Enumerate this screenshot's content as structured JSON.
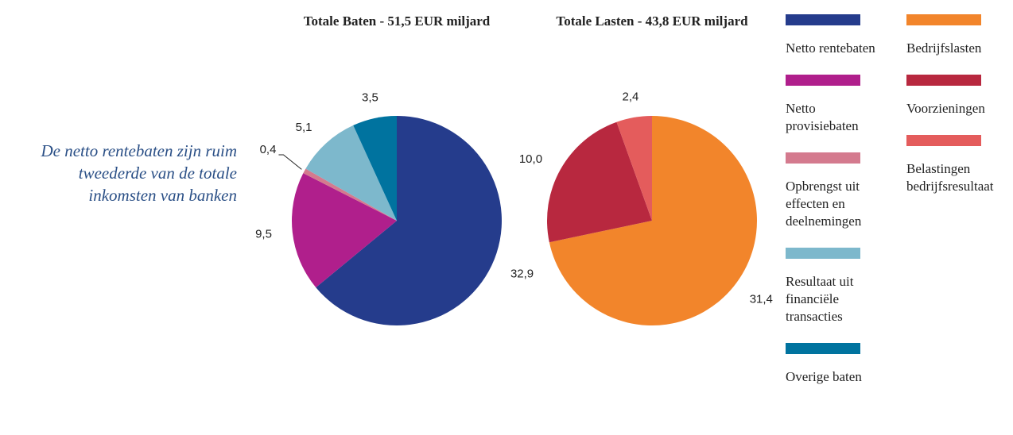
{
  "chart_data": [
    {
      "type": "pie",
      "title": "Totale Baten - 51,5 EUR miljard",
      "annotation": "De netto rentebaten zijn ruim tweederde van de totale inkomsten van banken",
      "categories": [
        "Netto rentebaten",
        "Netto provisiebaten",
        "Opbrengst uit effecten en deelnemingen",
        "Resultaat uit financiële transacties",
        "Overige baten"
      ],
      "values": [
        32.9,
        9.5,
        0.4,
        5.1,
        3.5
      ],
      "value_labels": [
        "32,9",
        "9,5",
        "0,4",
        "5,1",
        "3,5"
      ],
      "colors": [
        "#253c8c",
        "#b01f8c",
        "#d47a8e",
        "#7db8cc",
        "#00739f"
      ]
    },
    {
      "type": "pie",
      "title": "Totale Lasten - 43,8 EUR miljard",
      "categories": [
        "Bedrijfslasten",
        "Voorzieningen",
        "Belastingen bedrijfsresultaat"
      ],
      "values": [
        31.4,
        10.0,
        2.4
      ],
      "value_labels": [
        "31,4",
        "10,0",
        "2,4"
      ],
      "colors": [
        "#f2852b",
        "#b8283f",
        "#e45c5c"
      ]
    }
  ]
}
